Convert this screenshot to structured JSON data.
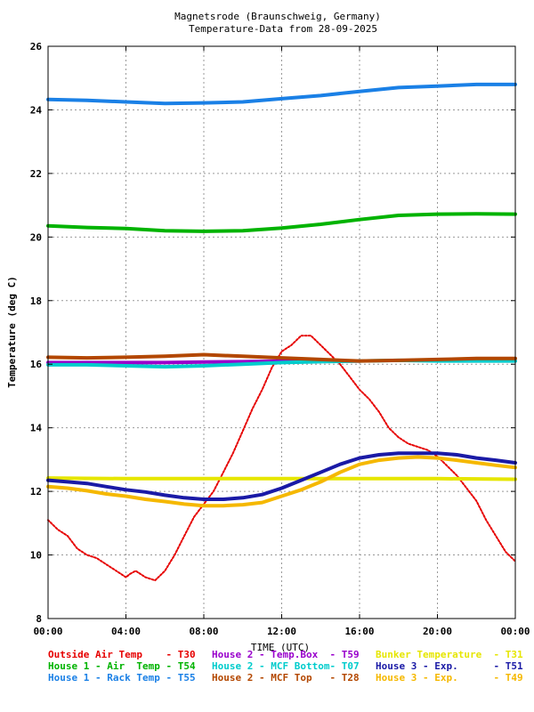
{
  "chart_data": {
    "type": "line",
    "title": "Magnetsrode (Braunschweig, Germany)",
    "subtitle": "Temperature-Data from 28-09-2025",
    "xlabel": "TIME (UTC)",
    "ylabel": "Temperature (deg C)",
    "xlim": [
      0,
      24
    ],
    "ylim": [
      8,
      26
    ],
    "grid": true,
    "legend_position": "bottom",
    "x_ticks": [
      0,
      4,
      8,
      12,
      16,
      20,
      24
    ],
    "x_tick_labels": [
      "00:00",
      "04:00",
      "08:00",
      "12:00",
      "16:00",
      "20:00",
      "00:00"
    ],
    "y_ticks": [
      8,
      10,
      12,
      14,
      16,
      18,
      20,
      22,
      24,
      26
    ],
    "y_tick_labels": [
      "8",
      "10",
      "12",
      "14",
      "16",
      "18",
      "20",
      "22",
      "24",
      "26"
    ],
    "series": [
      {
        "name": "Outside Air Temp",
        "code": "T30",
        "color": "#e60000",
        "x": [
          0,
          0.5,
          1,
          1.5,
          2,
          2.5,
          3,
          3.5,
          4,
          4.2,
          4.5,
          5,
          5.5,
          6,
          6.5,
          7,
          7.5,
          8,
          8.5,
          9,
          9.5,
          10,
          10.5,
          11,
          11.5,
          12,
          12.5,
          13,
          13.5,
          14,
          14.5,
          15,
          15.5,
          16,
          16.5,
          17,
          17.5,
          18,
          18.5,
          19,
          19.5,
          20,
          20.5,
          21,
          21.5,
          22,
          22.5,
          23,
          23.5,
          24
        ],
        "y": [
          11.1,
          10.8,
          10.6,
          10.2,
          10.0,
          9.9,
          9.7,
          9.5,
          9.3,
          9.4,
          9.5,
          9.3,
          9.2,
          9.5,
          10.0,
          10.6,
          11.2,
          11.6,
          12.0,
          12.6,
          13.2,
          13.9,
          14.6,
          15.2,
          15.9,
          16.4,
          16.6,
          16.9,
          16.9,
          16.6,
          16.3,
          16.0,
          15.6,
          15.2,
          14.9,
          14.5,
          14.0,
          13.7,
          13.5,
          13.4,
          13.3,
          13.1,
          12.8,
          12.5,
          12.1,
          11.7,
          11.1,
          10.6,
          10.1,
          9.8
        ]
      },
      {
        "name": "House 1 - Air  Temp",
        "code": "T54",
        "color": "#00b300",
        "x": [
          0,
          2,
          4,
          6,
          8,
          10,
          12,
          14,
          16,
          18,
          20,
          22,
          24
        ],
        "y": [
          20.35,
          20.3,
          20.27,
          20.2,
          20.18,
          20.2,
          20.28,
          20.4,
          20.55,
          20.68,
          20.72,
          20.73,
          20.72
        ]
      },
      {
        "name": "House 1 - Rack Temp",
        "code": "T55",
        "color": "#1a80e6",
        "x": [
          0,
          2,
          4,
          6,
          8,
          10,
          12,
          14,
          16,
          18,
          20,
          22,
          24
        ],
        "y": [
          24.33,
          24.3,
          24.25,
          24.2,
          24.22,
          24.25,
          24.35,
          24.45,
          24.58,
          24.7,
          24.75,
          24.8,
          24.8
        ]
      },
      {
        "name": "House 2 - Temp.Box",
        "code": "T59",
        "color": "#9900cc",
        "x": [
          0,
          2,
          4,
          6,
          8,
          10,
          12,
          14,
          16
        ],
        "y": [
          16.05,
          16.05,
          16.05,
          16.05,
          16.07,
          16.08,
          16.1,
          16.1,
          16.1
        ]
      },
      {
        "name": "House 2 - MCF Bottom",
        "code": "T07",
        "color": "#00cccc",
        "x": [
          0,
          2,
          4,
          6,
          8,
          10,
          12,
          14,
          16,
          18,
          20,
          22,
          24
        ],
        "y": [
          15.98,
          15.98,
          15.95,
          15.92,
          15.95,
          16.0,
          16.05,
          16.08,
          16.1,
          16.12,
          16.1,
          16.1,
          16.1
        ]
      },
      {
        "name": "House 2 - MCF Top",
        "code": "T28",
        "color": "#b34700",
        "x": [
          0,
          2,
          4,
          6,
          8,
          10,
          12,
          14,
          16,
          18,
          20,
          22,
          24
        ],
        "y": [
          16.22,
          16.2,
          16.22,
          16.25,
          16.3,
          16.25,
          16.2,
          16.15,
          16.1,
          16.12,
          16.15,
          16.18,
          16.18
        ]
      },
      {
        "name": "Bunker Temperature",
        "code": "T31",
        "color": "#e6e600",
        "x": [
          0,
          4,
          8,
          12,
          16,
          20,
          24
        ],
        "y": [
          12.42,
          12.4,
          12.4,
          12.4,
          12.4,
          12.4,
          12.38
        ]
      },
      {
        "name": "House 3 - Exp.",
        "code": "T51",
        "color": "#1a1aa6",
        "x": [
          0,
          1,
          2,
          3,
          4,
          5,
          6,
          7,
          8,
          9,
          10,
          11,
          12,
          13,
          14,
          15,
          16,
          17,
          18,
          19,
          20,
          21,
          22,
          23,
          24
        ],
        "y": [
          12.35,
          12.3,
          12.25,
          12.15,
          12.05,
          11.98,
          11.88,
          11.8,
          11.75,
          11.75,
          11.8,
          11.9,
          12.1,
          12.35,
          12.6,
          12.85,
          13.05,
          13.15,
          13.2,
          13.2,
          13.2,
          13.15,
          13.05,
          12.98,
          12.9
        ]
      },
      {
        "name": "House 3 - Exp.",
        "code": "T49",
        "color": "#f5b800",
        "x": [
          0,
          1,
          2,
          3,
          4,
          5,
          6,
          7,
          8,
          9,
          10,
          11,
          12,
          13,
          14,
          15,
          16,
          17,
          18,
          19,
          20,
          21,
          22,
          23,
          24
        ],
        "y": [
          12.15,
          12.1,
          12.02,
          11.92,
          11.85,
          11.75,
          11.68,
          11.6,
          11.55,
          11.55,
          11.58,
          11.65,
          11.85,
          12.05,
          12.3,
          12.6,
          12.85,
          12.98,
          13.05,
          13.08,
          13.05,
          12.98,
          12.9,
          12.82,
          12.75
        ]
      }
    ]
  },
  "legend": [
    {
      "label": "Outside Air Temp    - T30",
      "color": "#e60000"
    },
    {
      "label": "House 2 - Temp.Box  - T59",
      "color": "#9900cc"
    },
    {
      "label": "Bunker Temperature  - T31",
      "color": "#e6e600"
    },
    {
      "label": "House 1 - Air  Temp - T54",
      "color": "#00b300"
    },
    {
      "label": "House 2 - MCF Bottom- T07",
      "color": "#00cccc"
    },
    {
      "label": "House 3 - Exp.      - T51",
      "color": "#1a1aa6"
    },
    {
      "label": "House 1 - Rack Temp - T55",
      "color": "#1a80e6"
    },
    {
      "label": "House 2 - MCF Top   - T28",
      "color": "#b34700"
    },
    {
      "label": "House 3 - Exp.      - T49",
      "color": "#f5b800"
    }
  ]
}
